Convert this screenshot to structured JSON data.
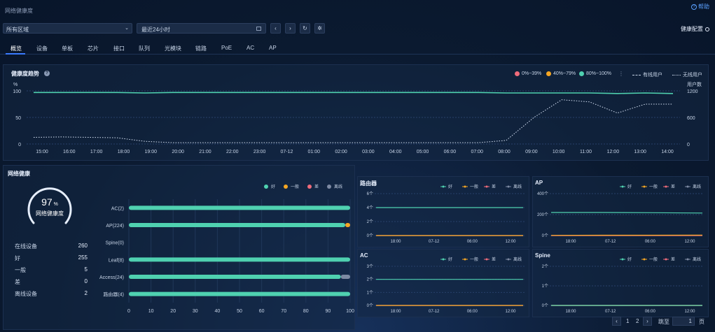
{
  "page": {
    "title": "网络健康度",
    "help_label": "帮助",
    "health_config_label": "健康配置"
  },
  "filters": {
    "region": "所有区域",
    "time_range": "最近24小时"
  },
  "tabs": [
    "概览",
    "设备",
    "单板",
    "芯片",
    "接口",
    "队列",
    "光模块",
    "链路",
    "PoE",
    "AC",
    "AP"
  ],
  "active_tab": 0,
  "trend": {
    "title": "健康度趋势",
    "legend": {
      "low": "0%~39%",
      "mid": "40%~79%",
      "high": "80%~100%",
      "wired": "有线用户",
      "wireless": "无线用户"
    },
    "left_unit": "%",
    "right_unit": "用户数",
    "left_ticks": [
      "100",
      "50",
      "0"
    ],
    "right_ticks": [
      "1200",
      "600",
      "0"
    ],
    "x_ticks": [
      "15:00",
      "16:00",
      "17:00",
      "18:00",
      "19:00",
      "20:00",
      "21:00",
      "22:00",
      "23:00",
      "07-12",
      "01:00",
      "02:00",
      "03:00",
      "04:00",
      "05:00",
      "06:00",
      "07:00",
      "08:00",
      "09:00",
      "10:00",
      "11:00",
      "12:00",
      "13:00",
      "14:00"
    ]
  },
  "network_health": {
    "title": "网络健康",
    "score": "97",
    "score_unit": "%",
    "score_label": "网络健康度",
    "stats": [
      {
        "label": "在线设备",
        "value": "260"
      },
      {
        "label": "好",
        "value": "255"
      },
      {
        "label": "一般",
        "value": "5"
      },
      {
        "label": "差",
        "value": "0"
      },
      {
        "label": "离线设备",
        "value": "2"
      }
    ],
    "legend": [
      "好",
      "一般",
      "差",
      "离线"
    ]
  },
  "bar_chart": {
    "categories": [
      "AC(2)",
      "AP(224)",
      "Spine(0)",
      "Leaf(8)",
      "Access(24)",
      "路由器(4)"
    ],
    "x_ticks": [
      "0",
      "10",
      "20",
      "30",
      "40",
      "50",
      "60",
      "70",
      "80",
      "90",
      "100"
    ]
  },
  "mini_charts": [
    {
      "title": "路由器",
      "y_ticks": [
        "6个",
        "4个",
        "2个",
        "0个"
      ]
    },
    {
      "title": "AP",
      "y_ticks": [
        "400个",
        "200个",
        "0个"
      ]
    },
    {
      "title": "AC",
      "y_ticks": [
        "3个",
        "2个",
        "1个",
        "0个"
      ]
    },
    {
      "title": "Spine",
      "y_ticks": [
        "2个",
        "1个",
        "0个"
      ]
    }
  ],
  "mini_x_ticks": [
    "18:00",
    "07-12",
    "06:00",
    "12:00"
  ],
  "mini_legend": [
    "好",
    "一般",
    "差",
    "离线"
  ],
  "pagination": {
    "pages": [
      "1",
      "2"
    ],
    "goto_label": "跳至",
    "page_suffix": "页",
    "input_value": "1"
  },
  "colors": {
    "good": "#4fd1b0",
    "normal": "#f5a623",
    "bad": "#ef6b7b",
    "offline": "#7d8aa3"
  },
  "chart_data": [
    {
      "type": "line",
      "title": "健康度趋势",
      "x": [
        "15:00",
        "16:00",
        "17:00",
        "18:00",
        "19:00",
        "20:00",
        "21:00",
        "22:00",
        "23:00",
        "07-12",
        "01:00",
        "02:00",
        "03:00",
        "04:00",
        "05:00",
        "06:00",
        "07:00",
        "08:00",
        "09:00",
        "10:00",
        "11:00",
        "12:00",
        "13:00",
        "14:00"
      ],
      "series": [
        {
          "name": "健康度",
          "axis": "left",
          "values": [
            97,
            97,
            97,
            97,
            96,
            97,
            97,
            97,
            97,
            97,
            97,
            97,
            97,
            97,
            97,
            97,
            97,
            96,
            96,
            96,
            96,
            95,
            96,
            95
          ]
        },
        {
          "name": "无线用户",
          "axis": "right",
          "values": [
            150,
            160,
            150,
            140,
            60,
            30,
            30,
            30,
            30,
            30,
            30,
            30,
            30,
            30,
            30,
            30,
            30,
            80,
            600,
            1000,
            950,
            700,
            900,
            900
          ]
        }
      ],
      "ylim_left": [
        0,
        100
      ],
      "ylim_right": [
        0,
        1200
      ]
    },
    {
      "type": "bar",
      "categories": [
        "AC(2)",
        "AP(224)",
        "Spine(0)",
        "Leaf(8)",
        "Access(24)",
        "路由器(4)"
      ],
      "series": [
        {
          "name": "好",
          "values": [
            100,
            97.8,
            0,
            100,
            95.8,
            100
          ]
        },
        {
          "name": "一般",
          "values": [
            0,
            2.2,
            0,
            0,
            0,
            0
          ]
        },
        {
          "name": "差",
          "values": [
            0,
            0,
            0,
            0,
            0,
            0
          ]
        },
        {
          "name": "离线",
          "values": [
            0,
            0,
            0,
            0,
            4.2,
            0
          ]
        }
      ],
      "xlim": [
        0,
        100
      ]
    },
    {
      "type": "line",
      "title": "路由器",
      "series": [
        {
          "name": "好",
          "values": [
            4,
            4,
            4,
            4
          ]
        },
        {
          "name": "一般",
          "values": [
            0,
            0,
            0,
            0
          ]
        },
        {
          "name": "差",
          "values": [
            0,
            0,
            0,
            0
          ]
        },
        {
          "name": "离线",
          "values": [
            0,
            0,
            0,
            0
          ]
        }
      ],
      "ylim": [
        0,
        6
      ]
    },
    {
      "type": "line",
      "title": "AP",
      "series": [
        {
          "name": "好",
          "values": [
            220,
            220,
            218,
            215
          ]
        },
        {
          "name": "一般",
          "values": [
            2,
            3,
            3,
            5
          ]
        },
        {
          "name": "差",
          "values": [
            0,
            0,
            0,
            0
          ]
        },
        {
          "name": "离线",
          "values": [
            0,
            0,
            0,
            0
          ]
        }
      ],
      "ylim": [
        0,
        400
      ]
    },
    {
      "type": "line",
      "title": "AC",
      "series": [
        {
          "name": "好",
          "values": [
            2,
            2,
            2,
            2
          ]
        },
        {
          "name": "一般",
          "values": [
            0,
            0,
            0,
            0
          ]
        },
        {
          "name": "差",
          "values": [
            0,
            0,
            0,
            0
          ]
        },
        {
          "name": "离线",
          "values": [
            0,
            0,
            0,
            0
          ]
        }
      ],
      "ylim": [
        0,
        3
      ]
    },
    {
      "type": "line",
      "title": "Spine",
      "series": [
        {
          "name": "好",
          "values": [
            0,
            0,
            0,
            0
          ]
        },
        {
          "name": "一般",
          "values": [
            0,
            0,
            0,
            0
          ]
        },
        {
          "name": "差",
          "values": [
            0,
            0,
            0,
            0
          ]
        },
        {
          "name": "离线",
          "values": [
            0,
            0,
            0,
            0
          ]
        }
      ],
      "ylim": [
        0,
        2
      ]
    }
  ]
}
